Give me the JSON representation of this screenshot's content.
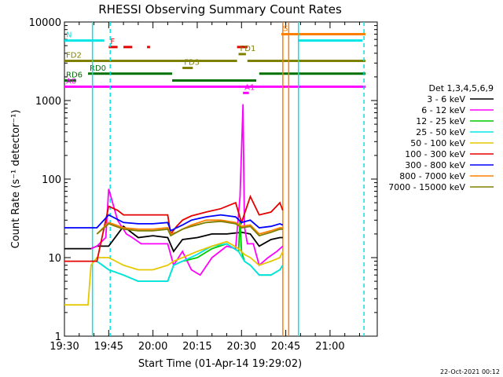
{
  "chart_data": {
    "type": "line",
    "title": "RHESSI Observing Summary Count Rates",
    "xlabel": "Start Time (01-Apr-14 19:29:02)",
    "ylabel": "Count Rate (s⁻¹ detector⁻¹)",
    "yscale": "log",
    "ylim": [
      1,
      10000
    ],
    "xlim_min": [
      1170,
      1276
    ],
    "x_ticks": [
      "19:30",
      "19:45",
      "20:00",
      "20:15",
      "20:30",
      "20:45",
      "21:00"
    ],
    "x_tick_min": [
      1170,
      1185,
      1200,
      1215,
      1230,
      1245,
      1260
    ],
    "y_ticks": [
      "1",
      "10",
      "100",
      "1000",
      "10000"
    ],
    "y_tick_vals": [
      1,
      10,
      100,
      1000,
      10000
    ],
    "legend_title": "Det 1,3,4,5,6,9",
    "legend_placement": "right",
    "series": [
      {
        "name": "3 - 6 keV",
        "color": "#000000",
        "x": [
          1170,
          1179,
          1181,
          1185,
          1190,
          1195,
          1200,
          1205,
          1207,
          1210,
          1215,
          1220,
          1225,
          1230,
          1233,
          1236,
          1240,
          1243,
          1244
        ],
        "y": [
          13,
          13,
          14,
          14,
          25,
          18,
          19,
          18,
          12,
          17,
          18,
          20,
          20,
          21,
          20,
          14,
          17,
          18,
          18
        ]
      },
      {
        "name": "6 - 12 keV",
        "color": "#ff00ff",
        "x": [
          1179,
          1181,
          1184,
          1185,
          1188,
          1191,
          1193,
          1196,
          1200,
          1205,
          1207,
          1210,
          1213,
          1216,
          1220,
          1225,
          1228,
          1229.5,
          1230.5,
          1231,
          1232,
          1234,
          1236,
          1239,
          1242,
          1244
        ],
        "y": [
          13,
          14,
          18,
          75,
          30,
          20,
          18,
          15,
          15,
          15,
          8,
          12,
          7,
          6,
          10,
          14,
          13,
          60,
          900,
          25,
          15,
          15,
          8,
          10,
          12,
          14
        ]
      },
      {
        "name": "12 - 25 keV",
        "color": "#00cc00",
        "x": [
          1179,
          1181,
          1185,
          1190,
          1195,
          1200,
          1205,
          1207,
          1210,
          1215,
          1220,
          1225,
          1229,
          1229.5,
          1230,
          1231,
          1233,
          1236,
          1240,
          1243,
          1244
        ],
        "y": [
          9,
          9,
          7,
          6,
          5,
          5,
          5,
          8,
          9,
          10,
          13,
          15,
          12,
          30,
          12,
          9,
          8,
          6,
          6,
          7,
          8
        ]
      },
      {
        "name": "25 - 50 keV",
        "color": "#00e5e5",
        "x": [
          1179,
          1181,
          1185,
          1190,
          1195,
          1200,
          1205,
          1207,
          1210,
          1215,
          1220,
          1225,
          1229,
          1231,
          1233,
          1236,
          1240,
          1243,
          1244
        ],
        "y": [
          9,
          9,
          7,
          6,
          5,
          5,
          5,
          8,
          9,
          11,
          14,
          15,
          12,
          9,
          8,
          6,
          6,
          7,
          8
        ]
      },
      {
        "name": "50 - 100 keV",
        "color": "#e5c800",
        "x": [
          1170,
          1178,
          1179,
          1181,
          1185,
          1190,
          1195,
          1200,
          1205,
          1207,
          1210,
          1215,
          1220,
          1225,
          1229,
          1231,
          1233,
          1236,
          1240,
          1243,
          1244
        ],
        "y": [
          2.5,
          2.5,
          8,
          10,
          10,
          8,
          7,
          7,
          8,
          9,
          10,
          12,
          14,
          16,
          13,
          11,
          10,
          8,
          9,
          10,
          12
        ]
      },
      {
        "name": "100 - 300 keV",
        "color": "#e50000",
        "x": [
          1170,
          1178,
          1181,
          1185,
          1188,
          1190,
          1195,
          1200,
          1205,
          1206,
          1208,
          1210,
          1213,
          1218,
          1223,
          1228,
          1230,
          1233,
          1236,
          1240,
          1243,
          1244
        ],
        "y": [
          9,
          9,
          9,
          45,
          40,
          35,
          35,
          35,
          35,
          20,
          25,
          30,
          34,
          38,
          42,
          50,
          28,
          60,
          35,
          38,
          50,
          40
        ]
      },
      {
        "name": "300 - 800 keV",
        "color": "#0000ff",
        "x": [
          1170,
          1178,
          1181,
          1185,
          1190,
          1195,
          1200,
          1205,
          1206,
          1208,
          1210,
          1213,
          1218,
          1223,
          1228,
          1230,
          1233,
          1236,
          1240,
          1243,
          1244
        ],
        "y": [
          24,
          24,
          24,
          35,
          28,
          27,
          27,
          28,
          22,
          24,
          26,
          30,
          33,
          35,
          33,
          28,
          30,
          24,
          25,
          27,
          26
        ]
      },
      {
        "name": "800 - 7000 keV",
        "color": "#ff8000",
        "x": [
          1181,
          1185,
          1190,
          1195,
          1200,
          1205,
          1206,
          1208,
          1210,
          1213,
          1218,
          1223,
          1228,
          1230,
          1233,
          1236,
          1240,
          1243,
          1244
        ],
        "y": [
          20,
          28,
          24,
          23,
          23,
          24,
          20,
          21,
          23,
          26,
          30,
          30,
          28,
          25,
          26,
          20,
          22,
          24,
          24
        ]
      },
      {
        "name": "7000 - 15000 keV",
        "color": "#808000",
        "x": [
          1181,
          1185,
          1190,
          1195,
          1200,
          1205,
          1206,
          1208,
          1210,
          1213,
          1218,
          1223,
          1228,
          1230,
          1233,
          1236,
          1240,
          1243,
          1244
        ],
        "y": [
          20,
          27,
          23,
          22,
          22,
          23,
          19,
          21,
          23,
          25,
          28,
          29,
          27,
          24,
          25,
          19,
          21,
          23,
          23
        ]
      }
    ],
    "flag_bars": [
      {
        "label": "N",
        "color": "#00e5e5",
        "segments": [
          [
            1170,
            1183.5
          ],
          [
            1249.5,
            1271
          ]
        ],
        "y": 5800
      },
      {
        "label": "F",
        "color": "#e50000",
        "segments": [
          [
            1185,
            1188
          ],
          [
            1190,
            1193
          ],
          [
            1198,
            1199
          ],
          [
            1228.5,
            1232
          ]
        ],
        "y": 4800
      },
      {
        "label": "S",
        "color": "#ff8000",
        "segments": [
          [
            1243.5,
            1272
          ]
        ],
        "y": 7000
      },
      {
        "label": "FD1",
        "color": "#808000",
        "segments": [
          [
            1229,
            1231.5
          ]
        ],
        "y": 3900
      },
      {
        "label": "FD2",
        "color": "#808000",
        "segments": [
          [
            1170,
            1228.5
          ],
          [
            1232,
            1272
          ]
        ],
        "y": 3200
      },
      {
        "label": "FD3",
        "color": "#808000",
        "segments": [
          [
            1210,
            1213.5
          ]
        ],
        "y": 2600
      },
      {
        "label": "RD0",
        "color": "#007000",
        "segments": [
          [
            1178,
            1206.5
          ],
          [
            1236,
            1272
          ]
        ],
        "y": 2200
      },
      {
        "label": "RD6",
        "color": "#007000",
        "segments": [
          [
            1170,
            1174
          ],
          [
            1206.5,
            1235
          ]
        ],
        "y": 1800
      },
      {
        "label": "A0",
        "color": "#ff00ff",
        "segments": [
          [
            1170,
            1272
          ]
        ],
        "y": 1500
      },
      {
        "label": "A1",
        "color": "#ff00ff",
        "segments": [
          [
            1230.5,
            1232.5
          ]
        ],
        "y": 1250
      }
    ],
    "vlines": [
      {
        "x": 1179.5,
        "color": "#00e5e5",
        "dash": false
      },
      {
        "x": 1185.5,
        "color": "#00e5e5",
        "dash": true
      },
      {
        "x": 1244.0,
        "color": "#ff8000",
        "dash": false
      },
      {
        "x": 1246.0,
        "color": "#ff8000",
        "dash": false
      },
      {
        "x": 1249.3,
        "color": "#00e5e5",
        "dash": false
      },
      {
        "x": 1271.5,
        "color": "#00e5e5",
        "dash": true
      }
    ]
  },
  "footer_date": "22-Oct-2021 00:12"
}
